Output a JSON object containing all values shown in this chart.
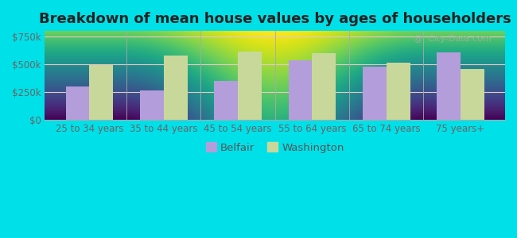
{
  "title": "Breakdown of mean house values by ages of householders",
  "categories": [
    "25 to 34 years",
    "35 to 44 years",
    "45 to 54 years",
    "55 to 64 years",
    "65 to 74 years",
    "75 years+"
  ],
  "belfair_values": [
    295000,
    265000,
    345000,
    535000,
    480000,
    605000
  ],
  "washington_values": [
    490000,
    580000,
    610000,
    595000,
    515000,
    455000
  ],
  "belfair_color": "#b39ddb",
  "washington_color": "#c8d89a",
  "background_top": "#e8f0e0",
  "background_bottom": "#d8ecd0",
  "outer_background": "#00e0e8",
  "yticks": [
    0,
    250000,
    500000,
    750000
  ],
  "ytick_labels": [
    "$0",
    "$250k",
    "$500k",
    "$750k"
  ],
  "legend_labels": [
    "Belfair",
    "Washington"
  ],
  "title_fontsize": 13,
  "tick_fontsize": 8.5,
  "legend_fontsize": 9.5,
  "bar_width": 0.32,
  "ylim": [
    0,
    800000
  ],
  "watermark": "@  City-Data.com"
}
